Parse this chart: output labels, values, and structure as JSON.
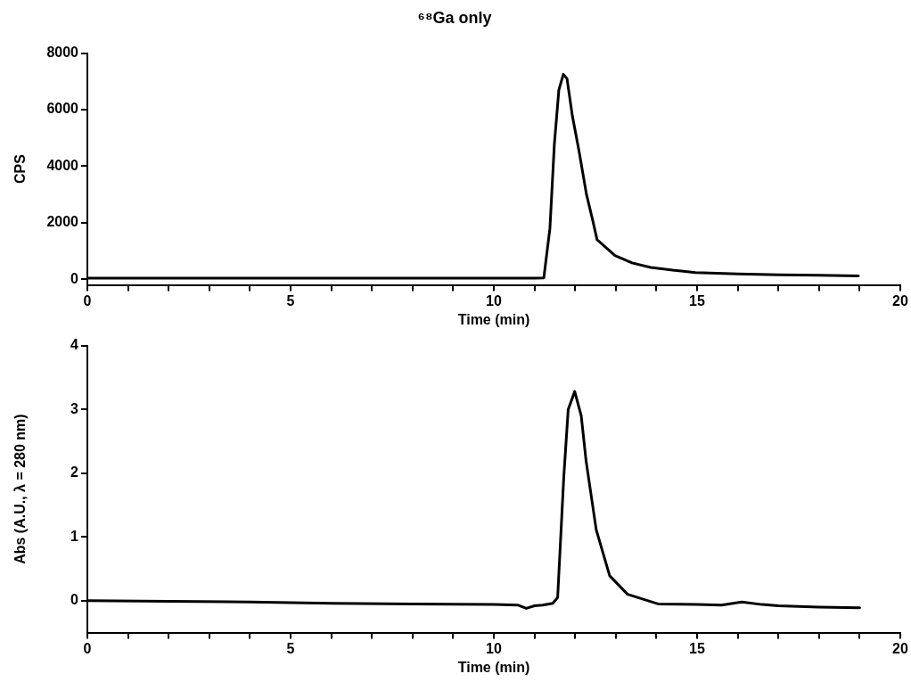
{
  "chart_data": [
    {
      "type": "line",
      "title": "⁶⁸Ga only",
      "xlabel": "Time (min)",
      "ylabel": "CPS",
      "xlim": [
        0,
        20
      ],
      "xticks": [
        0,
        {
          "value": 1,
          "label": null
        },
        {
          "value": 2,
          "label": null
        },
        {
          "value": 3,
          "label": null
        },
        {
          "value": 4,
          "label": null
        },
        5,
        {
          "value": 6,
          "label": null
        },
        {
          "value": 7,
          "label": null
        },
        {
          "value": 8,
          "label": null
        },
        {
          "value": 9,
          "label": null
        },
        10,
        {
          "value": 11,
          "label": null
        },
        {
          "value": 12,
          "label": null
        },
        {
          "value": 13,
          "label": null
        },
        {
          "value": 14,
          "label": null
        },
        15,
        {
          "value": 16,
          "label": null
        },
        {
          "value": 17,
          "label": null
        },
        {
          "value": 18,
          "label": null
        },
        {
          "value": 19,
          "label": null
        },
        20
      ],
      "ylim": [
        -200,
        8000
      ],
      "yticks": [
        0,
        2000,
        4000,
        6000,
        8000
      ],
      "grid": false,
      "legend": false,
      "marker": "none",
      "line_style": "solid",
      "x": [
        0,
        2,
        4,
        6,
        8,
        10,
        11,
        11.23,
        11.38,
        11.49,
        11.6,
        11.71,
        11.8,
        11.93,
        12.1,
        12.28,
        12.43,
        12.54,
        12.98,
        13.4,
        13.86,
        14.4,
        14.96,
        16,
        17,
        18,
        18.97
      ],
      "series": [
        {
          "color": "#000000",
          "values": [
            40,
            40,
            40,
            40,
            40,
            40,
            40,
            50,
            1800,
            4800,
            6700,
            7250,
            7100,
            5800,
            4500,
            3000,
            2100,
            1400,
            840,
            580,
            420,
            320,
            240,
            190,
            160,
            140,
            120
          ]
        }
      ]
    },
    {
      "type": "line",
      "xlabel": "Time (min)",
      "ylabel": "Abs (A.U., λ = 280 nm)",
      "xlim": [
        0,
        20
      ],
      "xticks": [
        0,
        {
          "value": 1,
          "label": null
        },
        {
          "value": 2,
          "label": null
        },
        {
          "value": 3,
          "label": null
        },
        {
          "value": 4,
          "label": null
        },
        5,
        {
          "value": 6,
          "label": null
        },
        {
          "value": 7,
          "label": null
        },
        {
          "value": 8,
          "label": null
        },
        {
          "value": 9,
          "label": null
        },
        10,
        {
          "value": 11,
          "label": null
        },
        {
          "value": 12,
          "label": null
        },
        {
          "value": 13,
          "label": null
        },
        {
          "value": 14,
          "label": null
        },
        15,
        {
          "value": 16,
          "label": null
        },
        {
          "value": 17,
          "label": null
        },
        {
          "value": 18,
          "label": null
        },
        {
          "value": 19,
          "label": null
        },
        20
      ],
      "ylim": [
        -0.5,
        4
      ],
      "yticks": [
        0,
        1,
        2,
        3,
        4
      ],
      "grid": false,
      "legend": false,
      "marker": "none",
      "line_style": "solid",
      "x": [
        0,
        2,
        4,
        6,
        8,
        10,
        10.6,
        10.8,
        11,
        11.2,
        11.45,
        11.57,
        11.72,
        11.83,
        11.99,
        12.15,
        12.27,
        12.52,
        12.85,
        13.29,
        14.04,
        15,
        15.6,
        16.1,
        16.6,
        17,
        18,
        19
      ],
      "series": [
        {
          "color": "#000000",
          "values": [
            0,
            -0.01,
            -0.02,
            -0.04,
            -0.05,
            -0.06,
            -0.07,
            -0.12,
            -0.08,
            -0.07,
            -0.04,
            0.05,
            1.93,
            3.0,
            3.28,
            2.9,
            2.19,
            1.11,
            0.39,
            0.1,
            -0.05,
            -0.06,
            -0.07,
            -0.02,
            -0.06,
            -0.08,
            -0.1,
            -0.11
          ]
        }
      ]
    }
  ]
}
